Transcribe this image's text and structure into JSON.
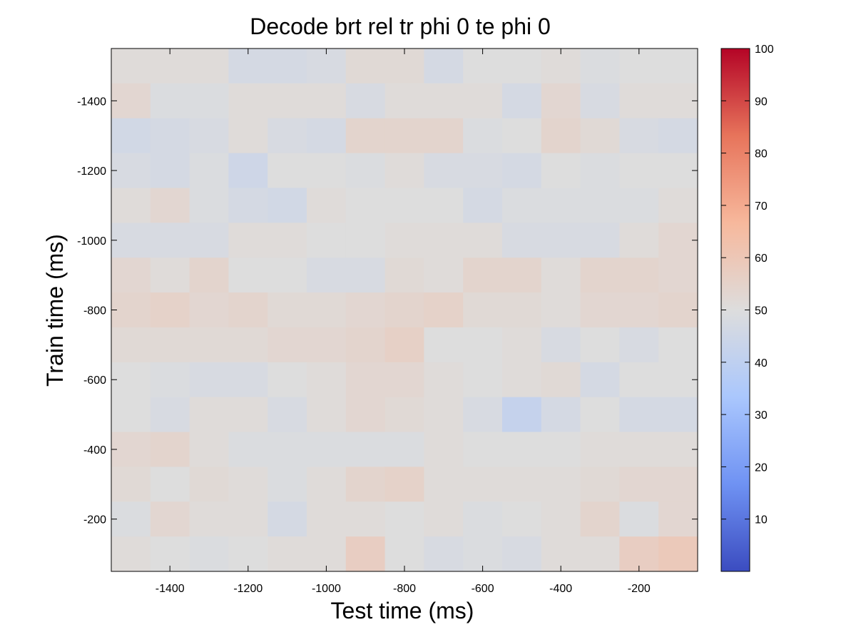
{
  "chart_data": {
    "type": "heatmap",
    "title": "Decode brt rel tr phi 0 te phi 0",
    "xlabel": "Test time (ms)",
    "ylabel": "Train time (ms)",
    "x_centers": [
      -1500,
      -1400,
      -1300,
      -1200,
      -1100,
      -1000,
      -900,
      -800,
      -700,
      -600,
      -500,
      -400,
      -300,
      -200,
      -100
    ],
    "y_centers": [
      -1500,
      -1400,
      -1300,
      -1200,
      -1100,
      -1000,
      -900,
      -800,
      -700,
      -600,
      -500,
      -400,
      -300,
      -200,
      -100
    ],
    "xlim": [
      -1550,
      -50
    ],
    "ylim": [
      -1550,
      -50
    ],
    "x_ticks": [
      -1400,
      -1200,
      -1000,
      -800,
      -600,
      -400,
      -200
    ],
    "y_ticks": [
      -1400,
      -1200,
      -1000,
      -800,
      -600,
      -400,
      -200
    ],
    "y_direction": "reverse",
    "color_scale": {
      "min": 0,
      "max": 100,
      "ticks": [
        10,
        20,
        30,
        40,
        50,
        60,
        70,
        80,
        90,
        100
      ],
      "colormap": "coolwarm",
      "stops": [
        "#3b4cc0",
        "#6f92f3",
        "#aac7fd",
        "#dddddd",
        "#f7b89c",
        "#e7745b",
        "#b40426"
      ]
    },
    "values": [
      [
        51,
        51,
        51,
        47,
        47,
        48,
        52,
        52,
        47,
        50,
        50,
        51,
        49,
        50,
        50
      ],
      [
        53,
        49,
        49,
        51,
        51,
        51,
        48,
        51,
        51,
        51,
        47,
        53,
        48,
        51,
        51
      ],
      [
        46,
        47,
        48,
        51,
        48,
        47,
        54,
        54,
        54,
        49,
        50,
        54,
        52,
        48,
        47
      ],
      [
        48,
        47,
        49,
        45,
        50,
        50,
        49,
        51,
        48,
        48,
        47,
        50,
        49,
        50,
        50
      ],
      [
        51,
        53,
        49,
        47,
        46,
        51,
        50,
        50,
        50,
        47,
        49,
        49,
        49,
        49,
        51
      ],
      [
        48,
        48,
        48,
        51,
        51,
        50,
        50,
        51,
        51,
        51,
        48,
        48,
        48,
        51,
        53
      ],
      [
        53,
        51,
        54,
        50,
        50,
        48,
        48,
        52,
        51,
        54,
        54,
        51,
        54,
        54,
        53
      ],
      [
        54,
        55,
        53,
        54,
        52,
        52,
        53,
        54,
        55,
        52,
        52,
        51,
        53,
        53,
        54
      ],
      [
        52,
        52,
        52,
        52,
        53,
        53,
        54,
        56,
        50,
        50,
        51,
        48,
        50,
        48,
        50
      ],
      [
        50,
        49,
        48,
        48,
        50,
        51,
        53,
        53,
        51,
        50,
        51,
        52,
        47,
        50,
        50
      ],
      [
        50,
        48,
        51,
        51,
        48,
        51,
        53,
        52,
        51,
        48,
        42,
        47,
        50,
        47,
        47
      ],
      [
        53,
        54,
        51,
        49,
        49,
        49,
        49,
        49,
        51,
        50,
        50,
        50,
        51,
        51,
        51
      ],
      [
        52,
        50,
        52,
        51,
        49,
        51,
        54,
        55,
        51,
        51,
        51,
        51,
        52,
        53,
        53
      ],
      [
        49,
        53,
        51,
        51,
        47,
        51,
        51,
        50,
        51,
        49,
        50,
        51,
        54,
        49,
        53
      ],
      [
        51,
        50,
        49,
        50,
        51,
        51,
        57,
        50,
        48,
        49,
        48,
        51,
        51,
        57,
        59
      ]
    ]
  }
}
